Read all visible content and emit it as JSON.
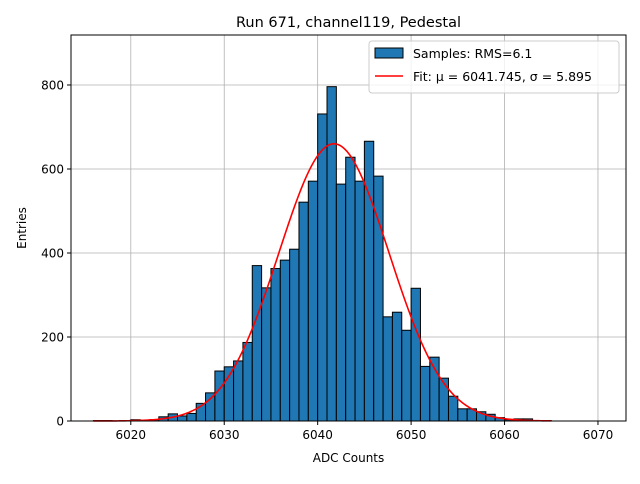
{
  "chart_data": {
    "type": "bar",
    "title": "Run 671, channel119, Pedestal",
    "xlabel": "ADC Counts",
    "ylabel": "Entries",
    "xlim": [
      6013.6,
      6073.0
    ],
    "ylim": [
      0,
      919
    ],
    "xticks": [
      6020,
      6030,
      6040,
      6050,
      6060,
      6070
    ],
    "yticks": [
      0,
      200,
      400,
      600,
      800
    ],
    "grid": true,
    "legend_placement": "top-right",
    "bin_start": 6016,
    "bin_width": 1,
    "values": [
      1,
      1,
      0,
      1,
      3,
      2,
      3,
      10,
      17,
      12,
      18,
      42,
      67,
      119,
      129,
      143,
      187,
      370,
      317,
      363,
      383,
      409,
      521,
      571,
      731,
      796,
      564,
      628,
      571,
      666,
      583,
      248,
      259,
      216,
      316,
      130,
      152,
      102,
      59,
      29,
      29,
      22,
      16,
      8,
      3,
      5,
      5,
      1,
      1
    ],
    "fit": {
      "mu": 6041.745,
      "sigma": 5.895,
      "amplitude": 660
    },
    "legend": [
      {
        "label": "Samples: RMS=6.1",
        "kind": "bar"
      },
      {
        "label": "Fit: μ = 6041.745, σ = 5.895",
        "kind": "line"
      }
    ],
    "colors": {
      "bars": "#1f77b4",
      "bar_edge": "#000000",
      "fit": "#ff0000",
      "grid": "#b0b0b0"
    }
  }
}
